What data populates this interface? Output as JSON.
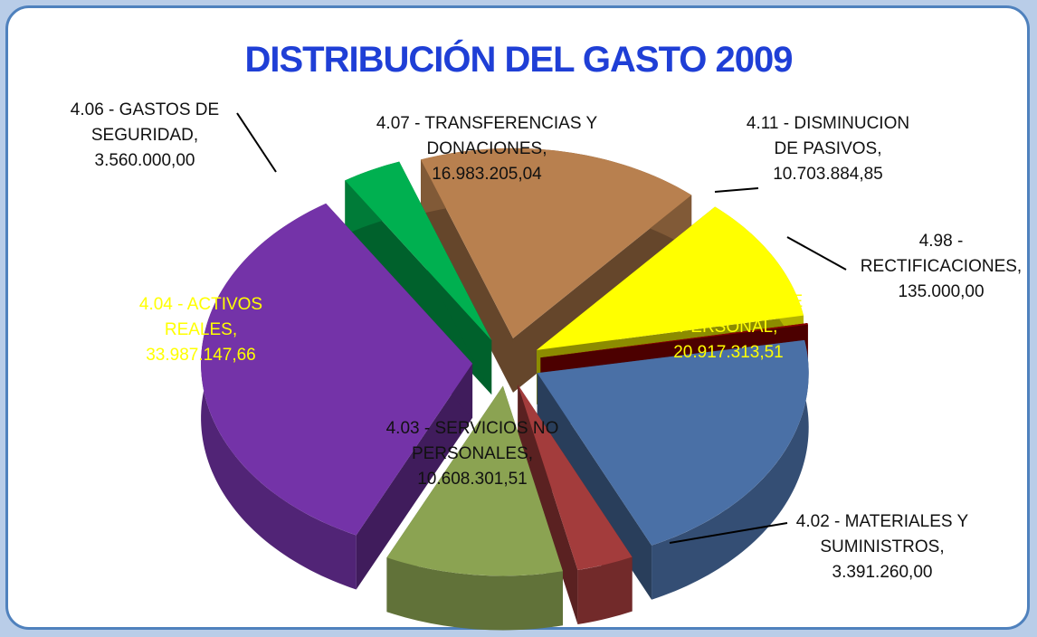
{
  "chart_data": {
    "type": "pie",
    "title": "DISTRIBUCIÓN DEL GASTO 2009",
    "categories": [
      "4.01 - GASTOS DE PERSONAL,",
      "4.02 - MATERIALES Y SUMINISTROS,",
      "4.03 - SERVICIOS NO PERSONALES,",
      "4.04 - ACTIVOS REALES,",
      "4.06 - GASTOS DE SEGURIDAD,",
      "4.07 - TRANSFERENCIAS Y DONACIONES,",
      "4.11 - DISMINUCION DE PASIVOS,",
      "4.98 - RECTIFICACIONES,"
    ],
    "values": [
      20917313.51,
      3391260.0,
      10608301.51,
      33987147.66,
      3560000.0,
      16983205.04,
      10703884.85,
      135000.0
    ],
    "value_labels": [
      "20.917.313,51",
      "3.391.260,00",
      "10.608.301,51",
      "33.987.147,66",
      "3.560.000,00",
      "16.983.205,04",
      "10.703.884,85",
      "135.000,00"
    ],
    "colors": [
      "#4a70a6",
      "#a33c3c",
      "#8ba352",
      "#7433a8",
      "#00b050",
      "#b8804f",
      "#ffff00",
      "#8b0000"
    ]
  }
}
